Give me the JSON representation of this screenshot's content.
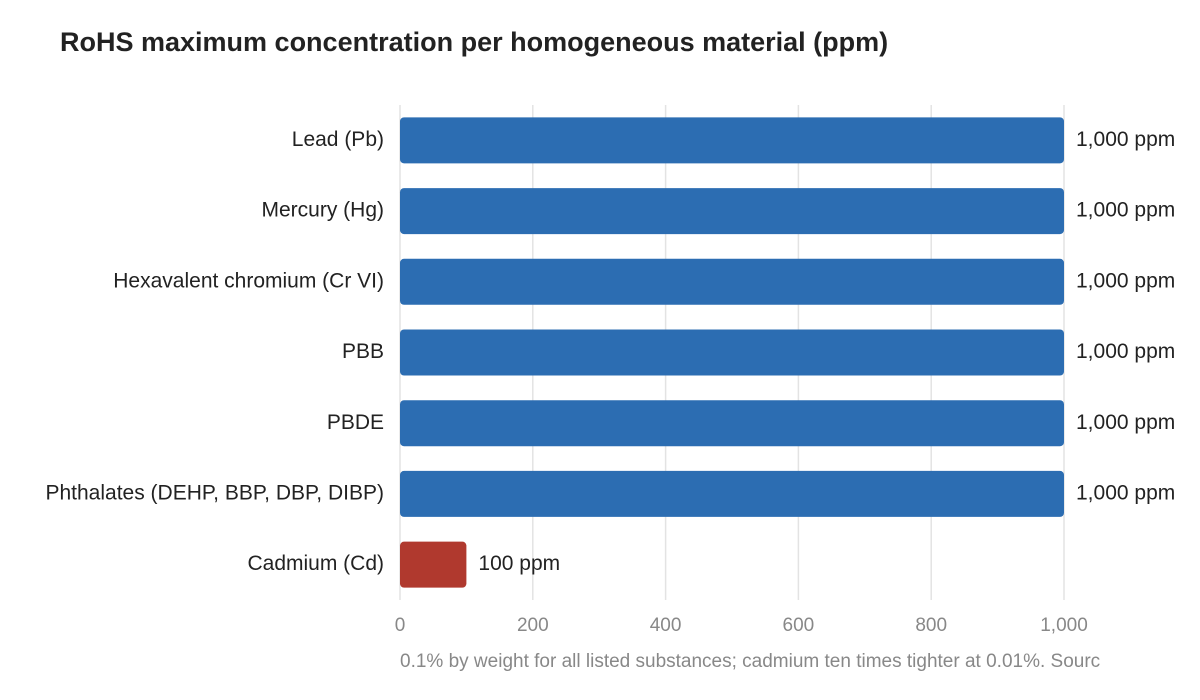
{
  "chart_data": {
    "type": "bar",
    "orientation": "horizontal",
    "title": "RoHS maximum concentration per homogeneous material (ppm)",
    "categories": [
      "Lead (Pb)",
      "Mercury (Hg)",
      "Hexavalent chromium (Cr VI)",
      "PBB",
      "PBDE",
      "Phthalates (DEHP, BBP, DBP, DIBP)",
      "Cadmium (Cd)"
    ],
    "values": [
      1000,
      1000,
      1000,
      1000,
      1000,
      1000,
      100
    ],
    "value_labels": [
      "1,000 ppm",
      "1,000 ppm",
      "1,000 ppm",
      "1,000 ppm",
      "1,000 ppm",
      "1,000 ppm",
      "100 ppm"
    ],
    "colors": [
      "#2c6db2",
      "#2c6db2",
      "#2c6db2",
      "#2c6db2",
      "#2c6db2",
      "#2c6db2",
      "#b0392e"
    ],
    "xlim": [
      0,
      1000
    ],
    "xticks": [
      0,
      200,
      400,
      600,
      800,
      {
        "value": 1000,
        "label": "1,000"
      }
    ],
    "grid": true,
    "footnote": "0.1% by weight for all listed substances; cadmium ten times tighter at 0.01%. Sourc"
  }
}
